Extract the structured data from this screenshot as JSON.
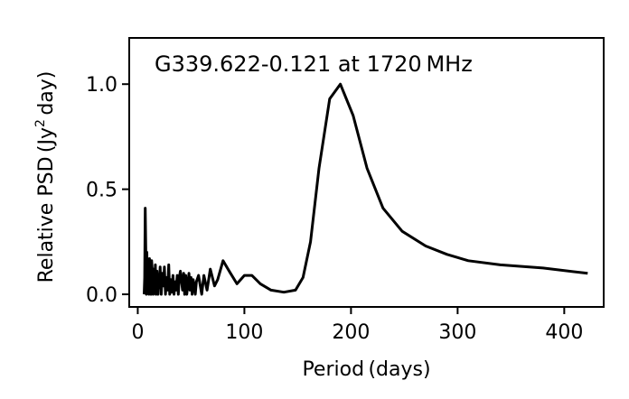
{
  "chart_data": {
    "type": "line",
    "title": "G339.622-0.121 at 1720 MHz",
    "xlabel": "Period (days)",
    "ylabel": "Relative PSD (Jy",
    "ylabel_sup": "2",
    "ylabel_tail": " day)",
    "xlim": [
      -8,
      437
    ],
    "ylim": [
      -0.06,
      1.22
    ],
    "xticks": [
      0,
      100,
      200,
      300,
      400
    ],
    "xtick_labels": [
      "0",
      "100",
      "200",
      "300",
      "400"
    ],
    "yticks": [
      0.0,
      0.5,
      1.0
    ],
    "ytick_labels": [
      "0.0",
      "0.5",
      "1.0"
    ],
    "grid": false,
    "line_color": "#000000",
    "series": [
      {
        "x": [
          6,
          6.5,
          7,
          7.5,
          8,
          8.5,
          9,
          10,
          10.5,
          11,
          12,
          12.5,
          13,
          14,
          14.5,
          15,
          16,
          16.5,
          17,
          18,
          19,
          19.5,
          20,
          21,
          22,
          23,
          24,
          25,
          26,
          27,
          28,
          29,
          30,
          31,
          32,
          33,
          34,
          35,
          36,
          37,
          38,
          39,
          40,
          42,
          43,
          44,
          45,
          46,
          48,
          49,
          50,
          51,
          52,
          54,
          55,
          57,
          60,
          62,
          65,
          68,
          72,
          75,
          80,
          87,
          93,
          100,
          107,
          115,
          125,
          137,
          148,
          155,
          162,
          170,
          180,
          190,
          202,
          215,
          230,
          248,
          270,
          290,
          310,
          340,
          380,
          422
        ],
        "y": [
          0.0,
          0.08,
          0.41,
          0.22,
          0.0,
          0.2,
          0.05,
          0.13,
          0.0,
          0.17,
          0.06,
          0.0,
          0.16,
          0.08,
          0.0,
          0.12,
          0.02,
          0.14,
          0.0,
          0.11,
          0.0,
          0.08,
          0.03,
          0.13,
          0.0,
          0.1,
          0.04,
          0.13,
          0.0,
          0.08,
          0.02,
          0.14,
          0.0,
          0.07,
          0.01,
          0.09,
          0.0,
          0.06,
          0.02,
          0.09,
          0.0,
          0.08,
          0.11,
          0.02,
          0.1,
          0.0,
          0.09,
          0.0,
          0.1,
          0.02,
          0.08,
          0.0,
          0.07,
          0.0,
          0.06,
          0.09,
          0.0,
          0.09,
          0.02,
          0.12,
          0.04,
          0.07,
          0.16,
          0.1,
          0.05,
          0.09,
          0.09,
          0.05,
          0.02,
          0.01,
          0.02,
          0.08,
          0.25,
          0.6,
          0.93,
          1.0,
          0.85,
          0.6,
          0.41,
          0.3,
          0.23,
          0.19,
          0.16,
          0.14,
          0.125,
          0.1
        ]
      }
    ]
  }
}
